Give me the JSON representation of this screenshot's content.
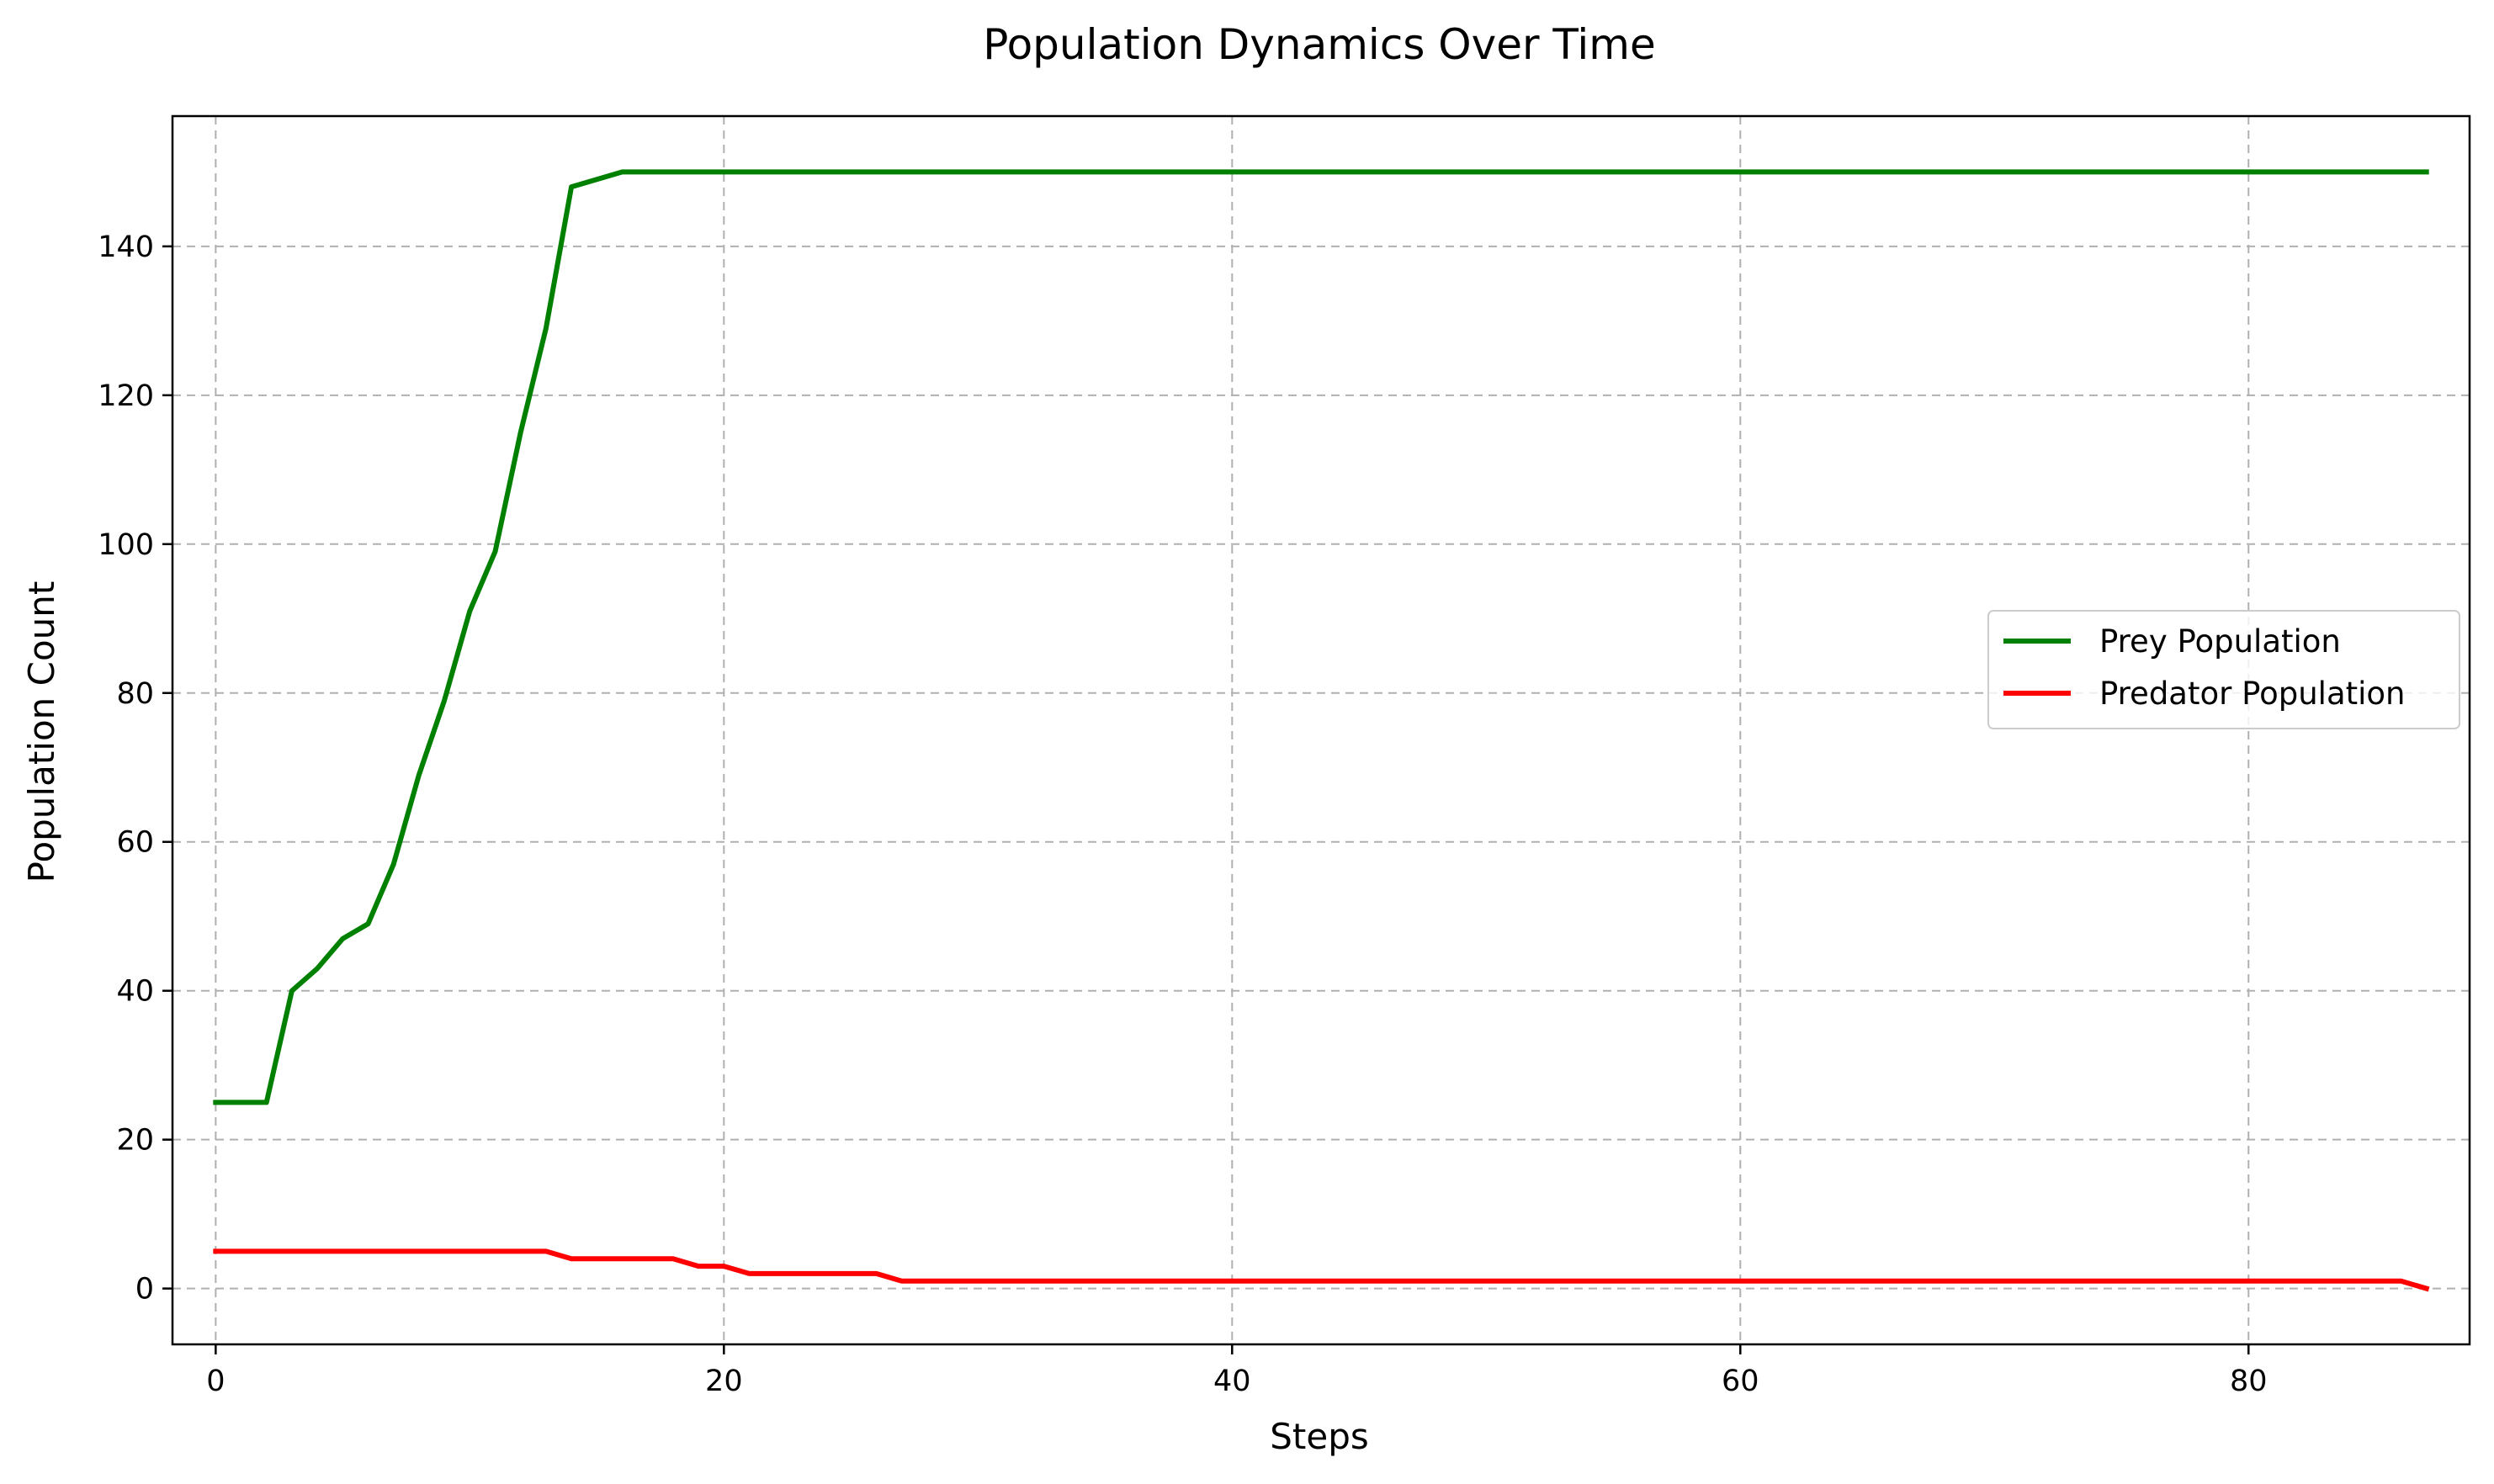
{
  "chart_data": {
    "type": "line",
    "title": "Population Dynamics Over Time",
    "xlabel": "Steps",
    "ylabel": "Population Count",
    "xlim": [
      -1.7,
      88.7
    ],
    "ylim": [
      -7.5,
      157.5
    ],
    "xticks": [
      0,
      20,
      40,
      60,
      80
    ],
    "yticks": [
      0,
      20,
      40,
      60,
      80,
      100,
      120,
      140
    ],
    "grid": true,
    "legend_position": "center-right",
    "series": [
      {
        "name": "Prey Population",
        "color": "#008000",
        "x": [
          0,
          1,
          2,
          3,
          4,
          5,
          6,
          7,
          8,
          9,
          10,
          11,
          12,
          13,
          14,
          15,
          16,
          87
        ],
        "y": [
          25,
          25,
          25,
          40,
          43,
          47,
          49,
          57,
          69,
          79,
          91,
          99,
          115,
          129,
          148,
          149,
          150,
          150
        ]
      },
      {
        "name": "Predator Population",
        "color": "#ff0000",
        "x": [
          0,
          13,
          14,
          18,
          19,
          20,
          21,
          26,
          27,
          86,
          87
        ],
        "y": [
          5,
          5,
          4,
          4,
          3,
          3,
          2,
          2,
          1,
          1,
          0
        ]
      }
    ]
  }
}
